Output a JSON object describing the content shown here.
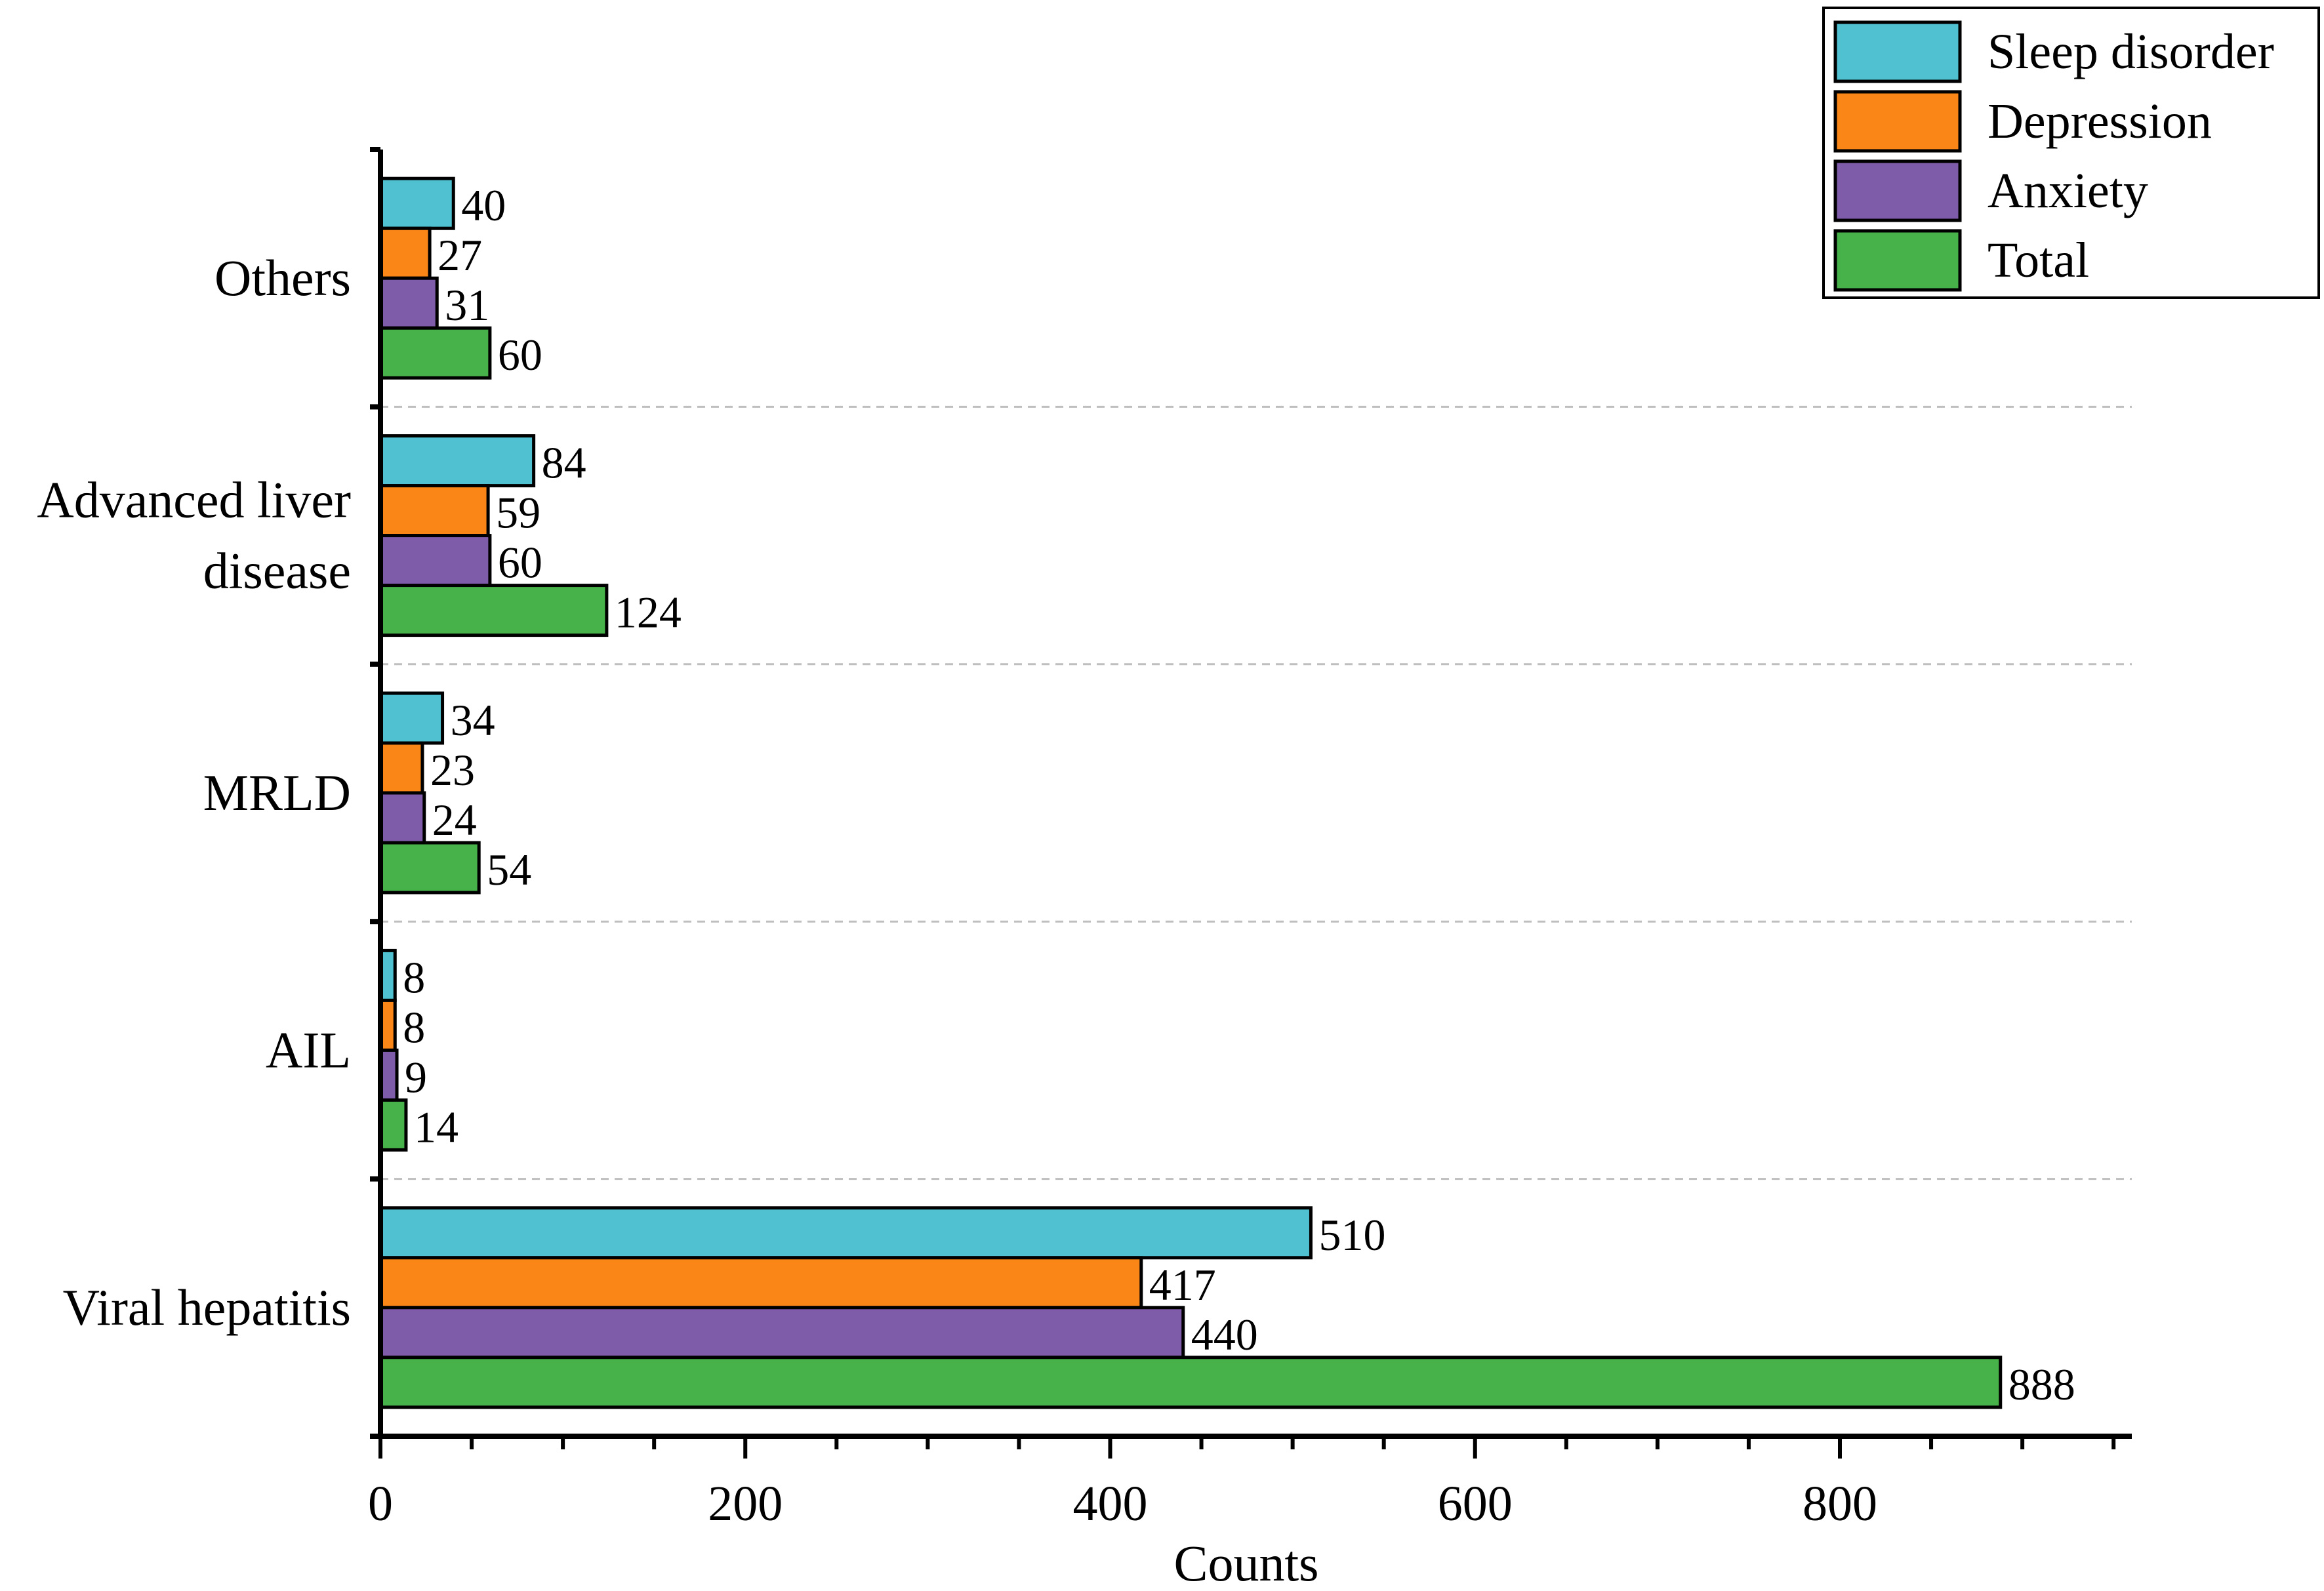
{
  "chart_data": {
    "type": "bar",
    "orientation": "horizontal",
    "title": "",
    "xlabel": "Counts",
    "ylabel": "",
    "xlim": [
      0,
      960
    ],
    "xticks": [
      0,
      200,
      400,
      600,
      800
    ],
    "grid": false,
    "legend_position": "top-right",
    "categories": [
      "Others",
      "Advanced liver disease",
      "MRLD",
      "AIL",
      "Viral hepatitis"
    ],
    "category_display": [
      [
        "Others"
      ],
      [
        "Advanced liver",
        "disease"
      ],
      [
        "MRLD"
      ],
      [
        "AIL"
      ],
      [
        "Viral hepatitis"
      ]
    ],
    "series": [
      {
        "name": "Sleep disorder",
        "color": "#4FC1D1",
        "values": [
          40,
          84,
          34,
          8,
          510
        ]
      },
      {
        "name": "Depression",
        "color": "#FA8617",
        "values": [
          27,
          59,
          23,
          8,
          417
        ]
      },
      {
        "name": "Anxiety",
        "color": "#7F5CAA",
        "values": [
          31,
          60,
          24,
          9,
          440
        ]
      },
      {
        "name": "Total",
        "color": "#47B24A",
        "values": [
          60,
          124,
          54,
          14,
          888
        ]
      }
    ]
  }
}
